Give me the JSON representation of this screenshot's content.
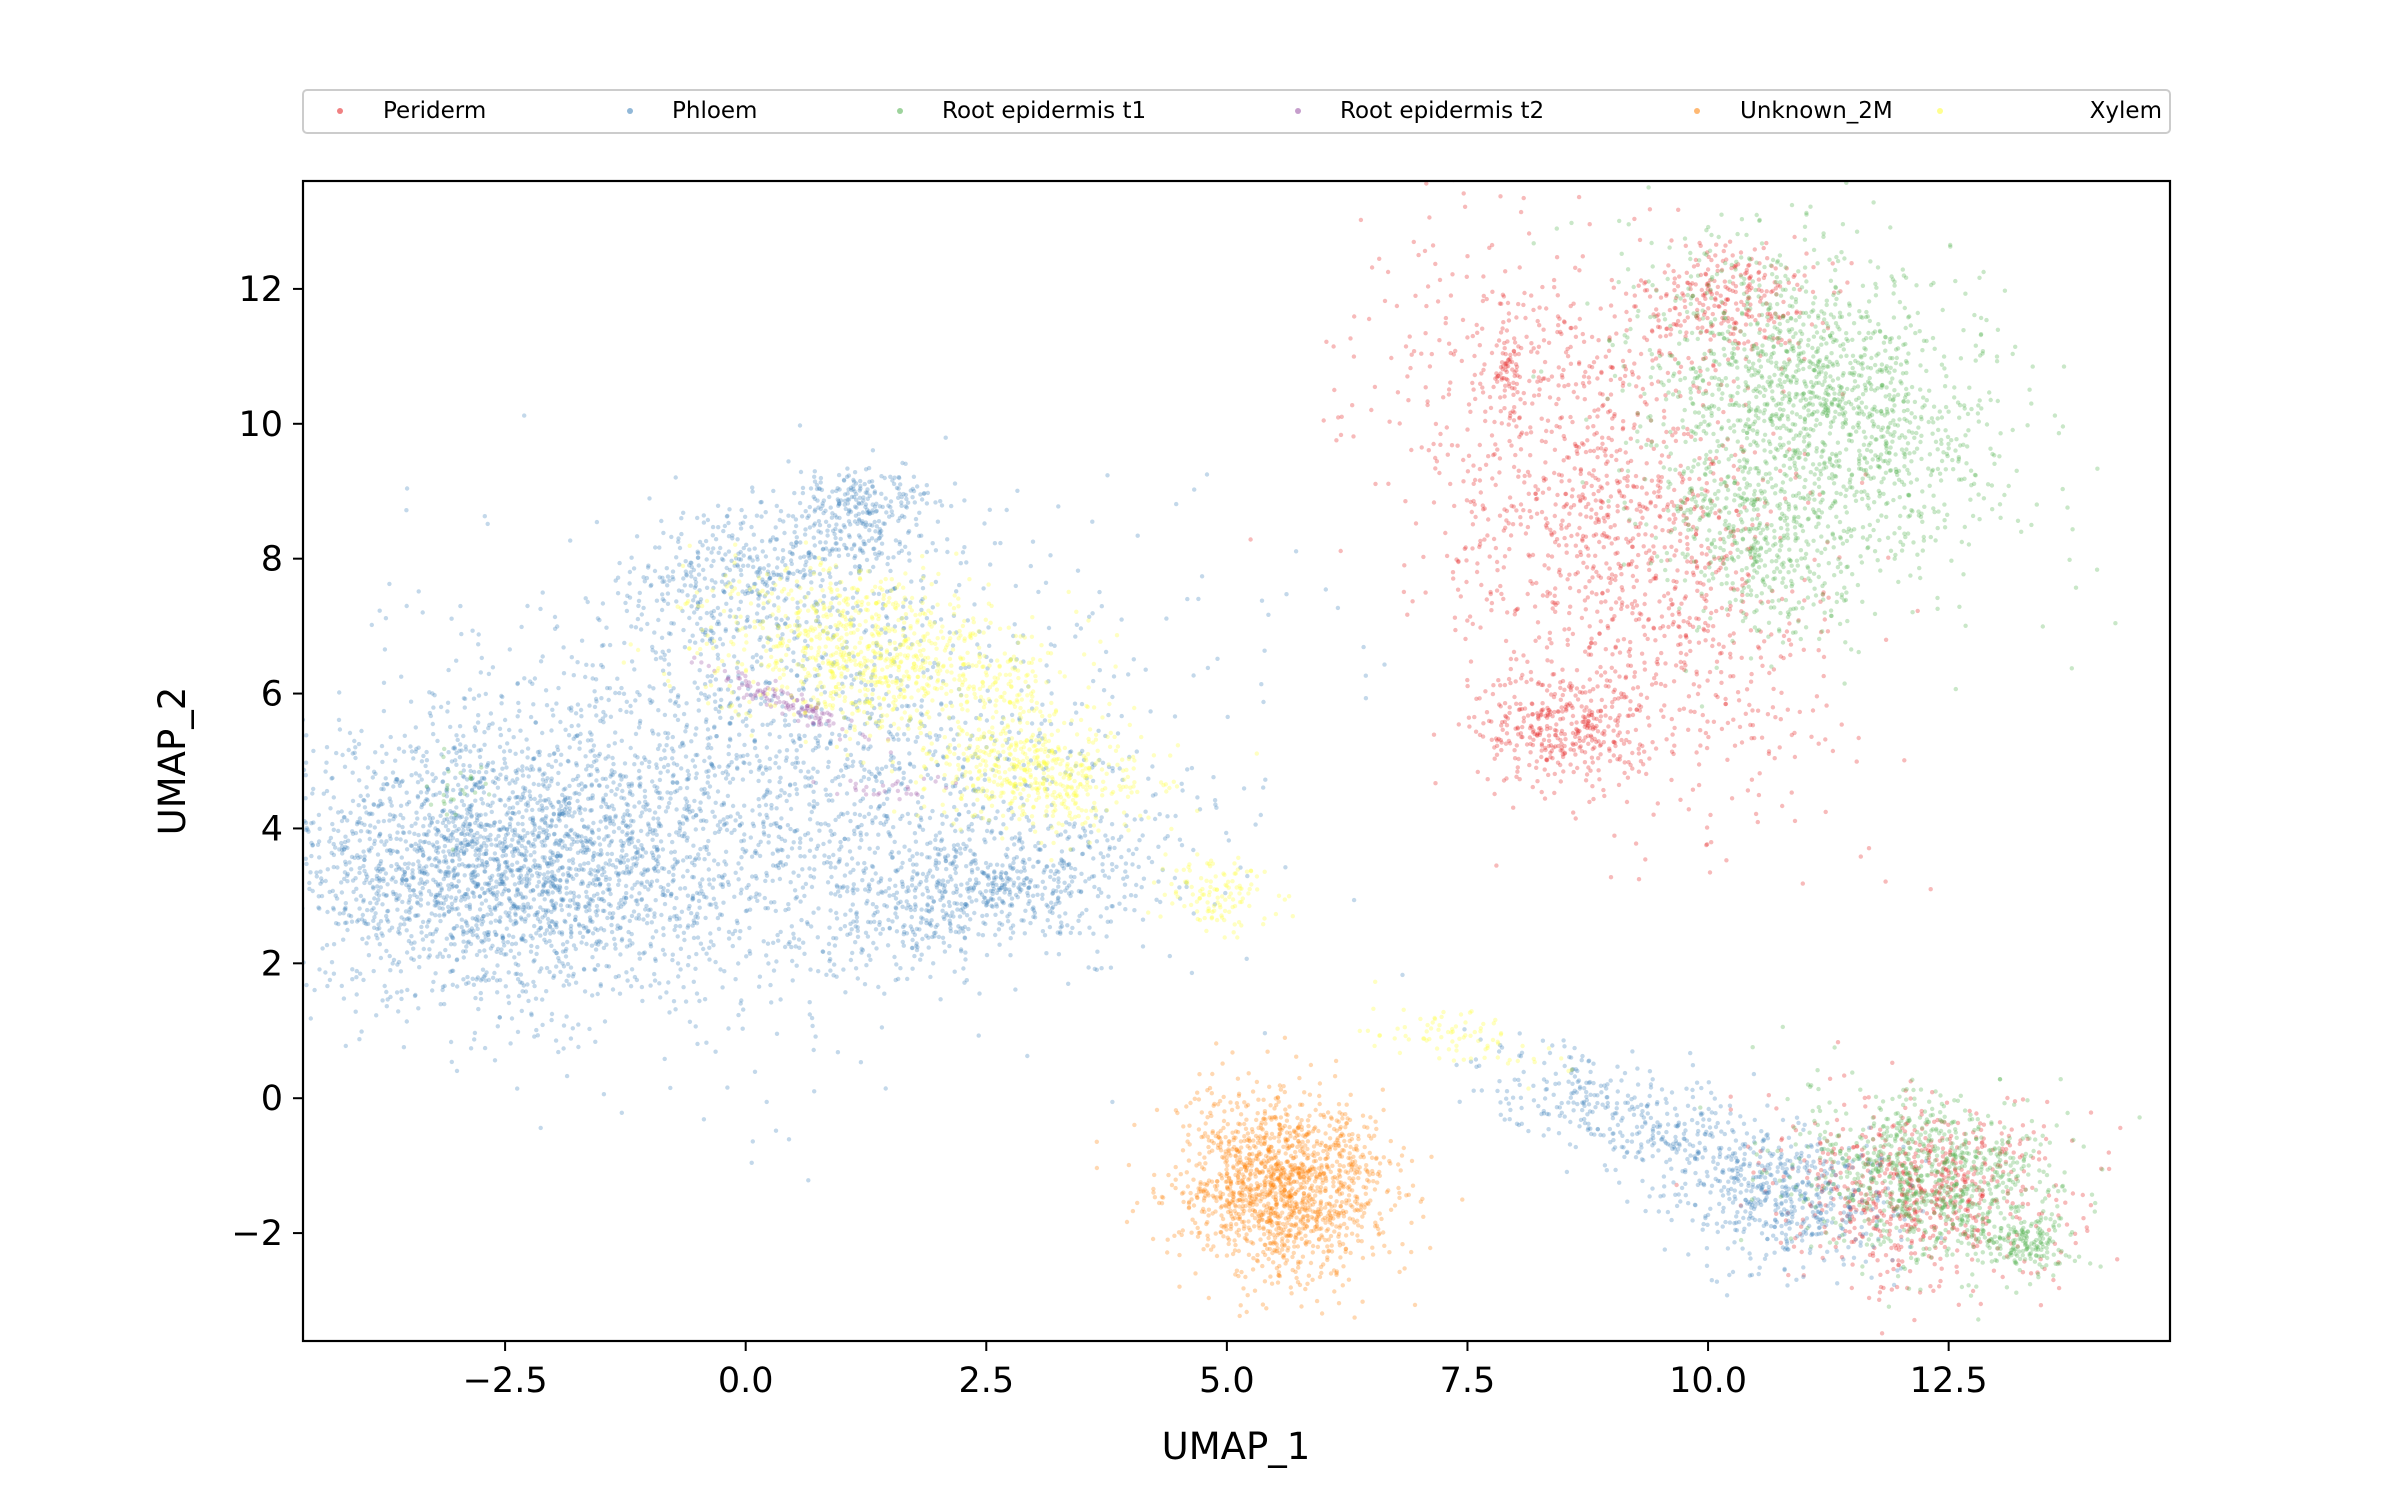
{
  "chart_data": {
    "type": "scatter",
    "title": "",
    "xlabel": "UMAP_1",
    "ylabel": "UMAP_2",
    "xlim": [
      -4.6,
      14.8
    ],
    "ylim": [
      -3.6,
      13.6
    ],
    "x_ticks": [
      -2.5,
      0.0,
      2.5,
      5.0,
      7.5,
      10.0,
      12.5
    ],
    "x_tick_labels": [
      "−2.5",
      "0.0",
      "2.5",
      "5.0",
      "7.5",
      "10.0",
      "12.5"
    ],
    "y_ticks": [
      -2,
      0,
      2,
      4,
      6,
      8,
      10,
      12
    ],
    "y_tick_labels": [
      "−2",
      "0",
      "2",
      "4",
      "6",
      "8",
      "10",
      "12"
    ],
    "grid": false,
    "legend_placement": "top, above plot",
    "point_opacity": 0.3,
    "series": [
      {
        "name": "Periderm",
        "color": "#e41a1c",
        "regions": [
          {
            "cx": 9.0,
            "cy": 8.6,
            "sx": 0.9,
            "sy": 2.1,
            "n": 1400,
            "rot": 0.35
          },
          {
            "cx": 8.5,
            "cy": 5.5,
            "sx": 0.45,
            "sy": 0.45,
            "n": 400,
            "rot": 0
          },
          {
            "cx": 10.2,
            "cy": 11.8,
            "sx": 0.45,
            "sy": 0.5,
            "n": 300,
            "rot": 0
          },
          {
            "cx": 7.9,
            "cy": 10.7,
            "sx": 0.08,
            "sy": 0.3,
            "n": 60,
            "rot": 0
          },
          {
            "cx": 12.2,
            "cy": -1.4,
            "sx": 0.75,
            "sy": 0.65,
            "n": 700,
            "rot": -0.5
          }
        ]
      },
      {
        "name": "Phloem",
        "color": "#377eb8",
        "regions": [
          {
            "cx": -2.6,
            "cy": 3.4,
            "sx": 1.1,
            "sy": 0.95,
            "n": 2200,
            "rot": 0
          },
          {
            "cx": 0.3,
            "cy": 4.6,
            "sx": 2.0,
            "sy": 1.6,
            "n": 2200,
            "rot": 0.3
          },
          {
            "cx": 0.3,
            "cy": 7.9,
            "sx": 0.9,
            "sy": 0.5,
            "n": 500,
            "rot": 0.4
          },
          {
            "cx": 1.2,
            "cy": 8.8,
            "sx": 0.35,
            "sy": 0.3,
            "n": 200,
            "rot": 0
          },
          {
            "cx": 2.5,
            "cy": 3.0,
            "sx": 1.0,
            "sy": 0.4,
            "n": 600,
            "rot": 0.3
          },
          {
            "cx": 9.3,
            "cy": -0.3,
            "sx": 0.9,
            "sy": 0.35,
            "n": 400,
            "rot": -0.5
          },
          {
            "cx": 10.8,
            "cy": -1.5,
            "sx": 0.6,
            "sy": 0.5,
            "n": 500,
            "rot": -0.4
          }
        ]
      },
      {
        "name": "Root epidermis t1",
        "color": "#4daf4a",
        "regions": [
          {
            "cx": 11.2,
            "cy": 10.4,
            "sx": 0.8,
            "sy": 1.2,
            "n": 1500,
            "rot": 0.5
          },
          {
            "cx": 10.5,
            "cy": 8.3,
            "sx": 0.5,
            "sy": 0.8,
            "n": 500,
            "rot": 0.3
          },
          {
            "cx": 12.3,
            "cy": -1.2,
            "sx": 0.7,
            "sy": 0.6,
            "n": 900,
            "rot": -0.5
          },
          {
            "cx": 13.3,
            "cy": -2.2,
            "sx": 0.25,
            "sy": 0.2,
            "n": 150,
            "rot": 0
          },
          {
            "cx": -3.0,
            "cy": 4.6,
            "sx": 0.15,
            "sy": 0.3,
            "n": 25,
            "rot": 0
          }
        ]
      },
      {
        "name": "Root epidermis t2",
        "color": "#984ea3",
        "regions": [
          {
            "cx": 0.5,
            "cy": 5.8,
            "sx": 0.5,
            "sy": 0.08,
            "n": 120,
            "rot": -0.55
          },
          {
            "cx": 1.5,
            "cy": 4.6,
            "sx": 0.3,
            "sy": 0.1,
            "n": 30,
            "rot": 0
          }
        ]
      },
      {
        "name": "Unknown_2M",
        "color": "#ff7f00",
        "regions": [
          {
            "cx": 5.6,
            "cy": -1.3,
            "sx": 0.55,
            "sy": 0.65,
            "n": 1500,
            "rot": 0
          }
        ]
      },
      {
        "name": "Xylem",
        "color": "#ffff33",
        "regions": [
          {
            "cx": 1.3,
            "cy": 6.6,
            "sx": 0.9,
            "sy": 0.6,
            "n": 900,
            "rot": -0.3
          },
          {
            "cx": 3.1,
            "cy": 4.8,
            "sx": 0.6,
            "sy": 0.4,
            "n": 500,
            "rot": -0.3
          },
          {
            "cx": 4.9,
            "cy": 3.0,
            "sx": 0.3,
            "sy": 0.25,
            "n": 120,
            "rot": -0.4
          },
          {
            "cx": 7.4,
            "cy": 0.9,
            "sx": 0.5,
            "sy": 0.2,
            "n": 80,
            "rot": -0.3
          },
          {
            "cx": 2.8,
            "cy": 6.0,
            "sx": 0.15,
            "sy": 0.3,
            "n": 40,
            "rot": 0
          }
        ]
      }
    ]
  }
}
